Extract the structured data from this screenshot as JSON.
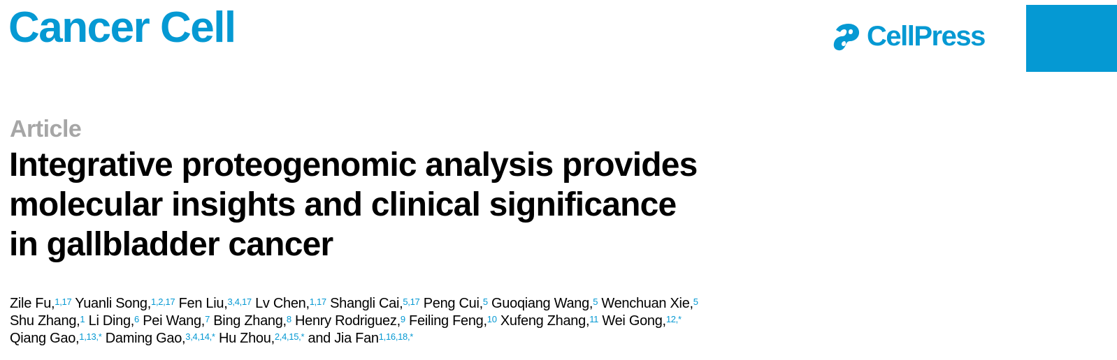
{
  "header": {
    "journal": "Cancer Cell",
    "publisher": "CellPress",
    "brand_color": "#0599d3"
  },
  "article": {
    "type": "Article",
    "title_lines": [
      "Integrative proteogenomic analysis provides",
      "molecular insights and clinical significance",
      "in gallbladder cancer"
    ],
    "author_lines": [
      [
        {
          "name": "Zile Fu,",
          "aff": "1,17"
        },
        {
          "name": " Yuanli Song,",
          "aff": "1,2,17"
        },
        {
          "name": " Fen Liu,",
          "aff": "3,4,17"
        },
        {
          "name": " Lv Chen,",
          "aff": "1,17"
        },
        {
          "name": " Shangli Cai,",
          "aff": "5,17"
        },
        {
          "name": " Peng Cui,",
          "aff": "5"
        },
        {
          "name": " Guoqiang Wang,",
          "aff": "5"
        },
        {
          "name": " Wenchuan Xie,",
          "aff": "5"
        }
      ],
      [
        {
          "name": "Shu Zhang,",
          "aff": "1"
        },
        {
          "name": " Li Ding,",
          "aff": "6"
        },
        {
          "name": " Pei Wang,",
          "aff": "7"
        },
        {
          "name": " Bing Zhang,",
          "aff": "8"
        },
        {
          "name": " Henry Rodriguez,",
          "aff": "9"
        },
        {
          "name": " Feiling Feng,",
          "aff": "10"
        },
        {
          "name": " Xufeng Zhang,",
          "aff": "11"
        },
        {
          "name": " Wei Gong,",
          "aff": "12,*"
        }
      ],
      [
        {
          "name": "Qiang Gao,",
          "aff": "1,13,*"
        },
        {
          "name": " Daming Gao,",
          "aff": "3,4,14,*"
        },
        {
          "name": " Hu Zhou,",
          "aff": "2,4,15,*"
        },
        {
          "name": " and Jia Fan",
          "aff": "1,16,18,*"
        }
      ]
    ]
  }
}
